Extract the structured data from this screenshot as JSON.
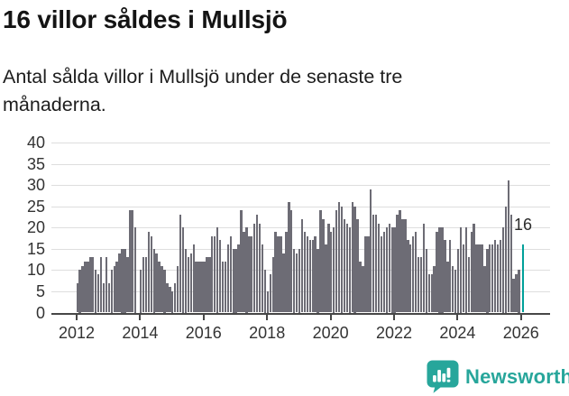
{
  "header": {
    "title": "16 villor såldes i Mullsjö",
    "subtitle": "Antal sålda villor i Mullsjö under de senaste tre månaderna."
  },
  "chart_data": {
    "type": "bar",
    "title": "16 villor såldes i Mullsjö",
    "x_unit": "month",
    "x_start": "2012-01",
    "x_end": "2026-01",
    "x_tick_labels": [
      "2012",
      "2014",
      "2016",
      "2018",
      "2020",
      "2022",
      "2024",
      "2026"
    ],
    "y_ticks": [
      0,
      5,
      10,
      15,
      20,
      25,
      30,
      35,
      40
    ],
    "ylim": [
      0,
      40
    ],
    "grid": "horizontal",
    "values": [
      7,
      10,
      11,
      12,
      12,
      13,
      13,
      10,
      9,
      13,
      7,
      13,
      7,
      10,
      11,
      12,
      14,
      15,
      15,
      13,
      24,
      24,
      20,
      0,
      10,
      13,
      13,
      19,
      18,
      15,
      14,
      12,
      11,
      10,
      7,
      6,
      5,
      7,
      11,
      23,
      20,
      15,
      13,
      14,
      16,
      12,
      12,
      12,
      12,
      13,
      13,
      18,
      18,
      20,
      17,
      12,
      12,
      16,
      18,
      15,
      15,
      16,
      24,
      19,
      20,
      18,
      18,
      21,
      23,
      21,
      16,
      10,
      5,
      9,
      13,
      19,
      18,
      18,
      14,
      19,
      26,
      24,
      15,
      14,
      15,
      22,
      19,
      18,
      17,
      17,
      18,
      15,
      24,
      22,
      16,
      21,
      19,
      20,
      24,
      26,
      25,
      22,
      21,
      20,
      26,
      25,
      22,
      12,
      11,
      18,
      18,
      29,
      23,
      23,
      21,
      18,
      19,
      20,
      21,
      20,
      20,
      23,
      24,
      22,
      22,
      17,
      16,
      18,
      19,
      13,
      13,
      21,
      15,
      9,
      9,
      11,
      19,
      20,
      20,
      17,
      12,
      17,
      11,
      10,
      15,
      20,
      16,
      20,
      13,
      19,
      21,
      16,
      16,
      16,
      11,
      15,
      16,
      16,
      17,
      16,
      17,
      20,
      25,
      31,
      23,
      8,
      9,
      10,
      16
    ],
    "highlight_last_value": 16,
    "annotation_label": "16",
    "colors": {
      "bar": "#6d6c75",
      "highlight": "#00a09a",
      "gridline": "#dedede",
      "axis": "#474747",
      "tick_text": "#333333"
    }
  },
  "branding": {
    "logo_text": "Newsworthy",
    "logo_color": "#27a69b",
    "icon": "newsworthy-speech-bubble-chart-icon"
  }
}
